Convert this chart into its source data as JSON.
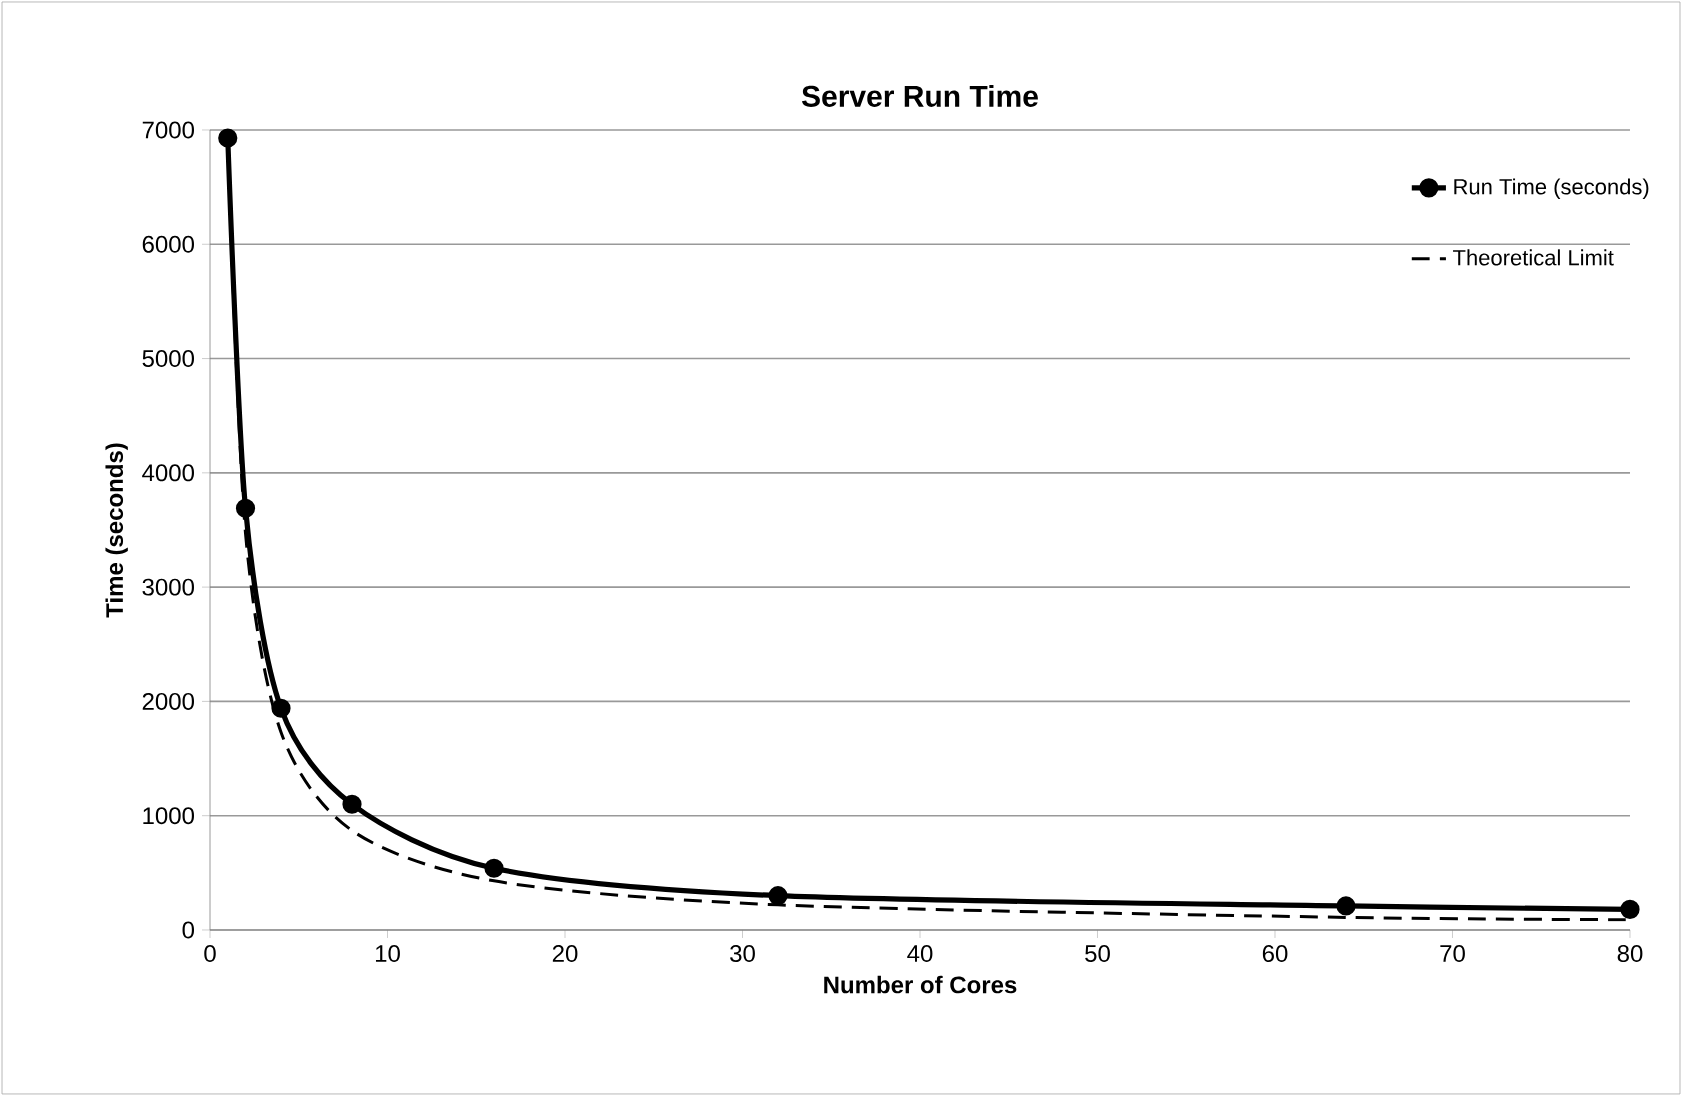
{
  "chart_data": {
    "type": "line",
    "title": "Server Run Time",
    "xlabel": "Number of Cores",
    "ylabel": "Time (seconds)",
    "x": [
      1,
      2,
      4,
      8,
      16,
      32,
      64,
      80
    ],
    "series": [
      {
        "name": "Run Time (seconds)",
        "color": "#000000",
        "values": [
          6930,
          3690,
          1940,
          1100,
          540,
          300,
          210,
          180
        ],
        "marker": "circle",
        "line_style": "solid"
      },
      {
        "name": "Theoretical Limit",
        "color": "#000000",
        "values": [
          6930,
          3470,
          1730,
          870,
          430,
          220,
          110,
          90
        ],
        "marker": "none",
        "line_style": "dashed"
      }
    ],
    "xlim": [
      0,
      80
    ],
    "xticks": [
      0,
      10,
      20,
      30,
      40,
      50,
      60,
      70,
      80
    ],
    "ylim": [
      0,
      7000
    ],
    "yticks": [
      0,
      1000,
      2000,
      3000,
      4000,
      5000,
      6000,
      7000
    ],
    "grid": "y",
    "legend": "top right"
  }
}
